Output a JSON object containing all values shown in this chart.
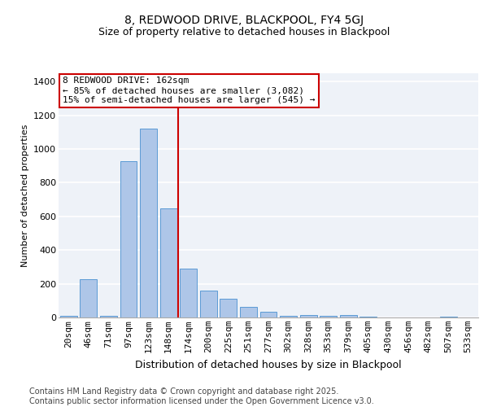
{
  "title": "8, REDWOOD DRIVE, BLACKPOOL, FY4 5GJ",
  "subtitle": "Size of property relative to detached houses in Blackpool",
  "xlabel": "Distribution of detached houses by size in Blackpool",
  "ylabel": "Number of detached properties",
  "categories": [
    "20sqm",
    "46sqm",
    "71sqm",
    "97sqm",
    "123sqm",
    "148sqm",
    "174sqm",
    "200sqm",
    "225sqm",
    "251sqm",
    "277sqm",
    "302sqm",
    "328sqm",
    "353sqm",
    "379sqm",
    "405sqm",
    "430sqm",
    "456sqm",
    "482sqm",
    "507sqm",
    "533sqm"
  ],
  "values": [
    10,
    228,
    10,
    930,
    1120,
    650,
    290,
    160,
    110,
    65,
    35,
    10,
    15,
    10,
    15,
    5,
    0,
    0,
    0,
    5,
    0
  ],
  "bar_color": "#aec6e8",
  "bar_edgecolor": "#5b9bd5",
  "redline_x": 5.5,
  "annotation_line1": "8 REDWOOD DRIVE: 162sqm",
  "annotation_line2": "← 85% of detached houses are smaller (3,082)",
  "annotation_line3": "15% of semi-detached houses are larger (545) →",
  "annotation_box_color": "#ffffff",
  "annotation_box_edgecolor": "#cc0000",
  "redline_color": "#cc0000",
  "ylim": [
    0,
    1450
  ],
  "yticks": [
    0,
    200,
    400,
    600,
    800,
    1000,
    1200,
    1400
  ],
  "bg_color": "#eef2f8",
  "footer": "Contains HM Land Registry data © Crown copyright and database right 2025.\nContains public sector information licensed under the Open Government Licence v3.0.",
  "title_fontsize": 10,
  "subtitle_fontsize": 9,
  "xlabel_fontsize": 9,
  "ylabel_fontsize": 8,
  "tick_fontsize": 8,
  "footer_fontsize": 7,
  "ann_fontsize": 8
}
